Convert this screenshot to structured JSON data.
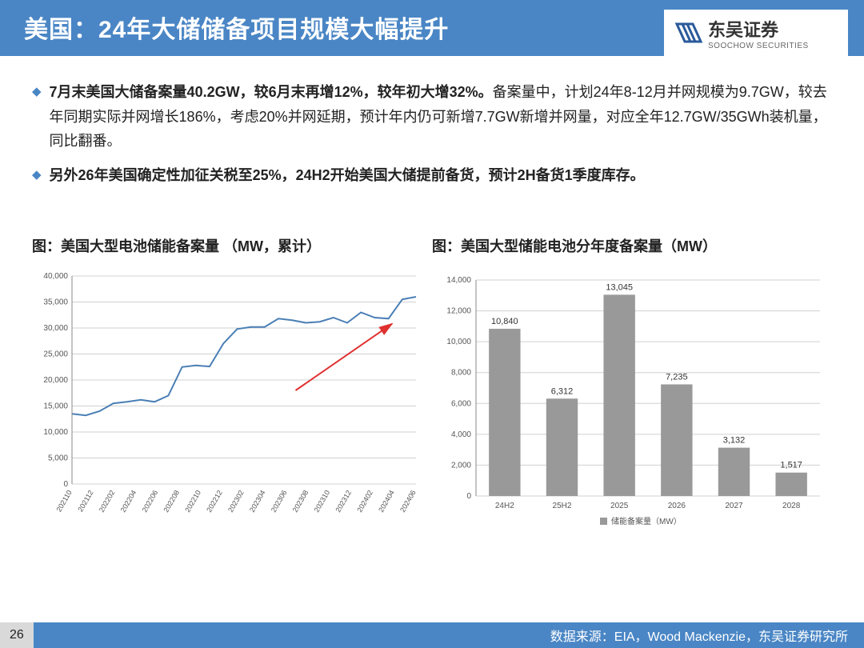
{
  "header": {
    "title": "美国：24年大储储备项目规模大幅提升",
    "logo_cn": "东吴证券",
    "logo_en": "SOOCHOW SECURITIES"
  },
  "bullets": [
    {
      "bold_part": "7月末美国大储备案量40.2GW，较6月末再增12%，较年初大增32%。",
      "rest": "备案量中，计划24年8-12月并网规模为9.7GW，较去年同期实际并网增长186%，考虑20%并网延期，预计年内仍可新增7.7GW新增并网量，对应全年12.7GW/35GWh装机量，同比翻番。"
    },
    {
      "bold_part": "另外26年美国确定性加征关税至25%，24H2开始美国大储提前备货，预计2H备货1季度库存。",
      "rest": ""
    }
  ],
  "chart1": {
    "title": "图：美国大型电池储能备案量 （MW，累计）",
    "type": "line",
    "ylim": [
      0,
      40000
    ],
    "ytick_step": 5000,
    "yticks": [
      "0",
      "5,000",
      "10,000",
      "15,000",
      "20,000",
      "25,000",
      "30,000",
      "35,000",
      "40,000"
    ],
    "x_labels": [
      "202110",
      "202112",
      "202202",
      "202204",
      "202206",
      "202208",
      "202210",
      "202212",
      "202302",
      "202304",
      "202306",
      "202308",
      "202310",
      "202312",
      "202402",
      "202404",
      "202406"
    ],
    "values": [
      13500,
      13200,
      14000,
      15500,
      15800,
      16200,
      15800,
      17000,
      22500,
      22800,
      22600,
      27000,
      29800,
      30200,
      30200,
      31800,
      31500,
      31000,
      31200,
      32000,
      31000,
      33000,
      32000,
      31800,
      35500,
      36000
    ],
    "line_color": "#4a7fb5",
    "grid_color": "#d0d0d0",
    "arrow_color": "#e03030",
    "background": "#ffffff",
    "label_fontsize": 9
  },
  "chart2": {
    "title": "图：美国大型储能电池分年度备案量（MW）",
    "type": "bar",
    "ylim": [
      0,
      14000
    ],
    "ytick_step": 2000,
    "yticks": [
      "0",
      "2,000",
      "4,000",
      "6,000",
      "8,000",
      "10,000",
      "12,000",
      "14,000"
    ],
    "categories": [
      "24H2",
      "25H2",
      "2025",
      "2026",
      "2027",
      "2028"
    ],
    "values": [
      10840,
      6312,
      13045,
      7235,
      3132,
      1517
    ],
    "value_labels": [
      "10,840",
      "6,312",
      "13,045",
      "7,235",
      "3,132",
      "1,517"
    ],
    "bar_color": "#999999",
    "grid_color": "#d0d0d0",
    "legend_label": "储能备案量（MW）",
    "label_fontsize": 11,
    "bar_width": 0.55
  },
  "footer": {
    "page": "26",
    "source": "数据来源：EIA，Wood Mackenzie，东吴证券研究所"
  }
}
